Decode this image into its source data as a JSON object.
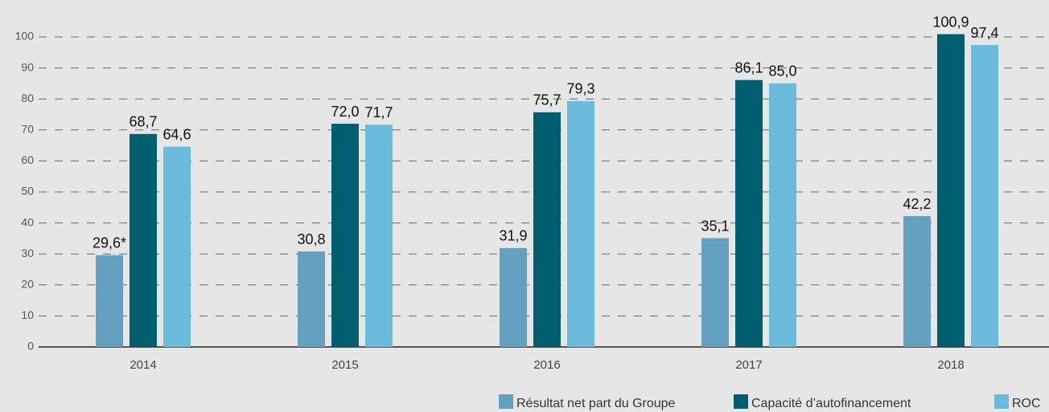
{
  "chart_data": {
    "type": "bar",
    "categories": [
      "2014",
      "2015",
      "2016",
      "2017",
      "2018"
    ],
    "series": [
      {
        "name": "Résultat net part du Groupe",
        "color": "#64a0bf",
        "values": [
          29.6,
          30.8,
          31.9,
          35.1,
          42.2
        ],
        "value_labels": [
          "29,6*",
          "30,8",
          "31,9",
          "35,1",
          "42,2"
        ]
      },
      {
        "name": "Capacité d’autofinancement",
        "color": "#005f6e",
        "values": [
          68.7,
          72.0,
          75.7,
          86.1,
          100.9
        ],
        "value_labels": [
          "68,7",
          "72,0",
          "75,7",
          "86,1",
          "100,9"
        ]
      },
      {
        "name": "ROC",
        "color": "#6bbbdc",
        "values": [
          64.6,
          71.7,
          79.3,
          85.0,
          97.4
        ],
        "value_labels": [
          "64,6",
          "71,7",
          "79,3",
          "85,0",
          "97,4"
        ]
      }
    ],
    "ylim": [
      0,
      110
    ],
    "yticks": [
      0,
      10,
      20,
      30,
      40,
      50,
      60,
      70,
      80,
      90,
      100
    ],
    "grid": true,
    "legend": "bottom-right"
  }
}
